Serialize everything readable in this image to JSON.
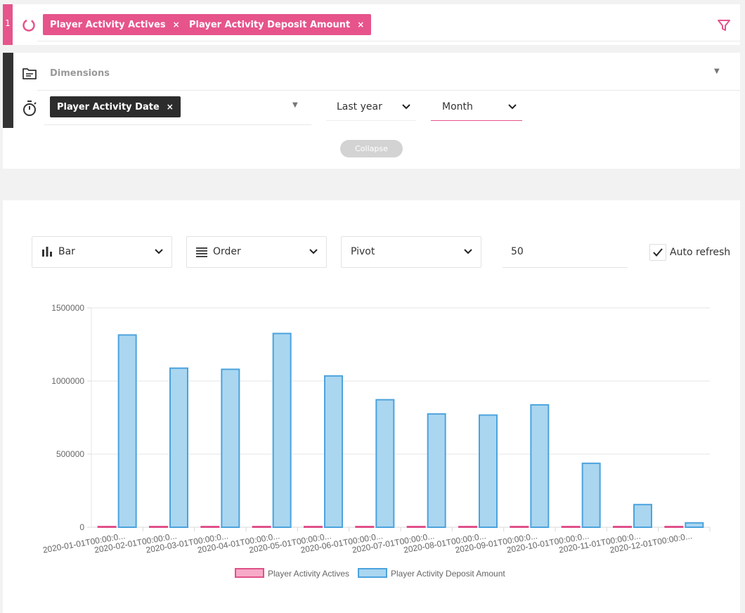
{
  "query": {
    "number": "1",
    "measures": [
      {
        "label": "Player Activity Actives",
        "remove": "×"
      },
      {
        "label": "Player Activity Deposit Amount",
        "remove": "×"
      }
    ]
  },
  "dimensions": {
    "placeholder": "Dimensions",
    "time_dimension": {
      "label": "Player Activity Date",
      "remove": "×"
    },
    "date_range": "Last year",
    "granularity": "Month",
    "collapse_label": "Collapse"
  },
  "controls": {
    "chart_type": "Bar",
    "order": "Order",
    "pivot": "Pivot",
    "limit": "50",
    "auto_refresh": {
      "label": "Auto refresh",
      "checked": true
    }
  },
  "colors": {
    "accent": "#e6548b",
    "actives_fill": "#f7aac7",
    "actives_stroke": "#e0518a",
    "deposit_fill": "#aad6f0",
    "deposit_stroke": "#4ca3dd",
    "dark": "#333333"
  },
  "icons": {
    "spinner": "spinner-icon",
    "filter": "filter-icon",
    "dimensions": "folder-list-icon",
    "time": "stopwatch-icon",
    "chart_type": "bar-chart-icon",
    "order": "list-lines-icon",
    "checkbox": "checkmark-icon"
  },
  "chart_data": {
    "type": "bar",
    "categories": [
      "2020-01-01T00:00:0...",
      "2020-02-01T00:00:0...",
      "2020-03-01T00:00:0...",
      "2020-04-01T00:00:0...",
      "2020-05-01T00:00:0...",
      "2020-06-01T00:00:0...",
      "2020-07-01T00:00:0...",
      "2020-08-01T00:00:0...",
      "2020-09-01T00:00:0...",
      "2020-10-01T00:00:0...",
      "2020-11-01T00:00:0...",
      "2020-12-01T00:00:0..."
    ],
    "series": [
      {
        "name": "Player Activity Actives",
        "values": [
          2500,
          2400,
          2300,
          2500,
          2300,
          2200,
          2100,
          2000,
          2100,
          1900,
          900,
          200
        ]
      },
      {
        "name": "Player Activity Deposit Amount",
        "values": [
          1315000,
          1088000,
          1080000,
          1325000,
          1035000,
          872000,
          775000,
          767000,
          837000,
          437000,
          155000,
          30000
        ]
      }
    ],
    "yticks": [
      "0",
      "500000",
      "1000000",
      "1500000"
    ],
    "ylim": [
      0,
      1500000
    ],
    "grid": true,
    "legend_position": "bottom"
  }
}
